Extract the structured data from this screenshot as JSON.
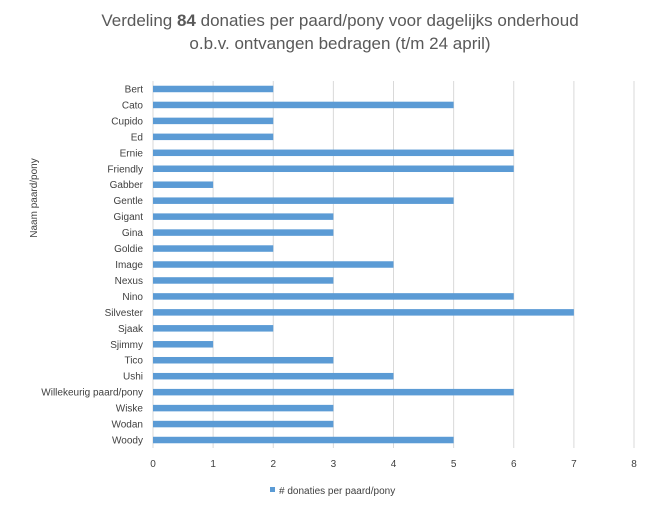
{
  "chart_data": {
    "type": "bar",
    "orientation": "horizontal",
    "title_prefix": "Verdeling ",
    "title_bold": "84",
    "title_suffix": " donaties per paard/pony voor dagelijks onderhoud",
    "subtitle": "o.b.v. ontvangen bedragen (t/m 24 april)",
    "ylabel": "Naam paard/pony",
    "xlabel": "",
    "xlim": [
      0,
      8
    ],
    "xticks": [
      "0",
      "1",
      "2",
      "3",
      "4",
      "5",
      "6",
      "7",
      "8"
    ],
    "grid": "vertical",
    "legend_position": "bottom",
    "bar_color": "#5b9bd5",
    "categories": [
      "Bert",
      "Cato",
      "Cupido",
      "Ed",
      "Ernie",
      "Friendly",
      "Gabber",
      "Gentle",
      "Gigant",
      "Gina",
      "Goldie",
      "Image",
      "Nexus",
      "Nino",
      "Silvester",
      "Sjaak",
      "Sjimmy",
      "Tico",
      "Ushi",
      "Willekeurig paard/pony",
      "Wiske",
      "Wodan",
      "Woody"
    ],
    "series": [
      {
        "name": "# donaties per paard/pony",
        "values": [
          2,
          5,
          2,
          2,
          6,
          6,
          1,
          5,
          3,
          3,
          2,
          4,
          3,
          6,
          7,
          2,
          1,
          3,
          4,
          6,
          3,
          3,
          5
        ]
      }
    ]
  }
}
